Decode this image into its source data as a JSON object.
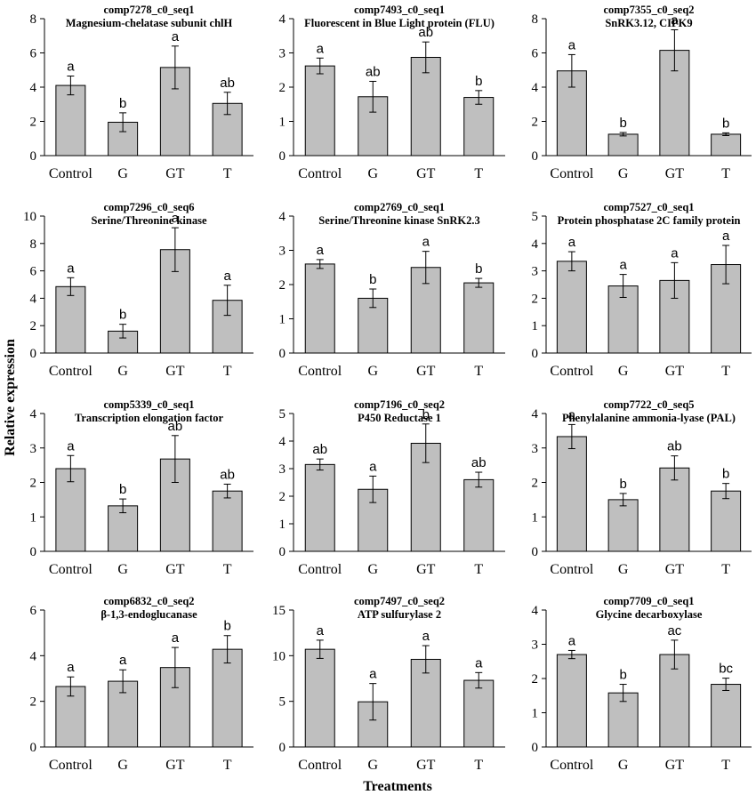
{
  "figure": {
    "ylabel": "Relative expression",
    "xlabel": "Treatments"
  },
  "chart_data": [
    {
      "type": "bar",
      "title": "comp7278_c0_seq1",
      "subtitle": "Magnesium-chelatase subunit chlH",
      "categories": [
        "Control",
        "G",
        "GT",
        "T"
      ],
      "values": [
        4.1,
        1.95,
        5.15,
        3.05
      ],
      "errors": [
        0.55,
        0.55,
        1.25,
        0.65
      ],
      "labels": [
        "a",
        "b",
        "a",
        "ab"
      ],
      "ylim": [
        0,
        8
      ],
      "yticks": [
        0,
        2,
        4,
        6,
        8
      ],
      "ytick_labels": [
        "0",
        "2",
        "4",
        "6",
        "8"
      ],
      "bar_color": "#bfbfbf"
    },
    {
      "type": "bar",
      "title": "comp7493_c0_seq1",
      "subtitle": "Fluorescent in Blue Light protein (FLU)",
      "categories": [
        "Control",
        "G",
        "GT",
        "T"
      ],
      "values": [
        2.62,
        1.72,
        2.87,
        1.7
      ],
      "errors": [
        0.23,
        0.45,
        0.45,
        0.2
      ],
      "labels": [
        "a",
        "ab",
        "ab",
        "b"
      ],
      "ylim": [
        0,
        4
      ],
      "yticks": [
        0,
        1,
        2,
        3,
        4
      ],
      "ytick_labels": [
        "0",
        "1",
        "2",
        "3",
        "4"
      ],
      "bar_color": "#bfbfbf"
    },
    {
      "type": "bar",
      "title": "comp7355_c0_seq2",
      "subtitle": "SnRK3.12, CIPK9",
      "categories": [
        "Control",
        "G",
        "GT",
        "T"
      ],
      "values": [
        4.95,
        1.25,
        6.15,
        1.25
      ],
      "errors": [
        0.95,
        0.1,
        1.2,
        0.08
      ],
      "labels": [
        "a",
        "b",
        "a",
        "b"
      ],
      "ylim": [
        0,
        8
      ],
      "yticks": [
        0,
        2,
        4,
        6,
        8
      ],
      "ytick_labels": [
        "0",
        "2",
        "4",
        "6",
        "8"
      ],
      "bar_color": "#bfbfbf"
    },
    {
      "type": "bar",
      "title": "comp7296_c0_seq6",
      "subtitle": "Serine/Threonine kinase",
      "categories": [
        "Control",
        "G",
        "GT",
        "T"
      ],
      "values": [
        4.85,
        1.6,
        7.55,
        3.85
      ],
      "errors": [
        0.65,
        0.5,
        1.6,
        1.1
      ],
      "labels": [
        "a",
        "b",
        "a",
        "a"
      ],
      "ylim": [
        0,
        10
      ],
      "yticks": [
        0,
        2,
        4,
        6,
        8,
        10
      ],
      "ytick_labels": [
        "0",
        "2",
        "4",
        "6",
        "8",
        "10"
      ],
      "bar_color": "#bfbfbf"
    },
    {
      "type": "bar",
      "title": "comp2769_c0_seq1",
      "subtitle": "Serine/Threonine kinase SnRK2.3",
      "categories": [
        "Control",
        "G",
        "GT",
        "T"
      ],
      "values": [
        2.6,
        1.6,
        2.5,
        2.05
      ],
      "errors": [
        0.13,
        0.27,
        0.47,
        0.13
      ],
      "labels": [
        "a",
        "b",
        "a",
        "b"
      ],
      "ylim": [
        0,
        4
      ],
      "yticks": [
        0,
        1,
        2,
        3,
        4
      ],
      "ytick_labels": [
        "0",
        "1",
        "2",
        "3",
        "4"
      ],
      "bar_color": "#bfbfbf"
    },
    {
      "type": "bar",
      "title": "comp7527_c0_seq1",
      "subtitle": "Protein phosphatase 2C family protein",
      "categories": [
        "Control",
        "G",
        "GT",
        "T"
      ],
      "values": [
        3.35,
        2.45,
        2.65,
        3.23
      ],
      "errors": [
        0.35,
        0.42,
        0.65,
        0.7
      ],
      "labels": [
        "a",
        "a",
        "a",
        "a"
      ],
      "ylim": [
        0,
        5
      ],
      "yticks": [
        0,
        1,
        2,
        3,
        4,
        5
      ],
      "ytick_labels": [
        "0",
        "1",
        "2",
        "3",
        "4",
        "5"
      ],
      "bar_color": "#bfbfbf"
    },
    {
      "type": "bar",
      "title": "comp5339_c0_seq1",
      "subtitle": "Transcription elongation factor",
      "categories": [
        "Control",
        "G",
        "GT",
        "T"
      ],
      "values": [
        2.4,
        1.32,
        2.68,
        1.75
      ],
      "errors": [
        0.38,
        0.2,
        0.68,
        0.2
      ],
      "labels": [
        "a",
        "b",
        "ab",
        "ab"
      ],
      "ylim": [
        0,
        4
      ],
      "yticks": [
        0,
        1,
        2,
        3,
        4
      ],
      "ytick_labels": [
        "0",
        "1",
        "2",
        "3",
        "4"
      ],
      "bar_color": "#bfbfbf"
    },
    {
      "type": "bar",
      "title": "comp7196_c0_seq2",
      "subtitle": "P450 Reductase 1",
      "categories": [
        "Control",
        "G",
        "GT",
        "T"
      ],
      "values": [
        3.15,
        2.25,
        3.92,
        2.6
      ],
      "errors": [
        0.2,
        0.48,
        0.7,
        0.27
      ],
      "labels": [
        "ab",
        "a",
        "b",
        "ab"
      ],
      "ylim": [
        0,
        5
      ],
      "yticks": [
        0,
        1,
        2,
        3,
        4,
        5
      ],
      "ytick_labels": [
        "0",
        "1",
        "2",
        "3",
        "4",
        "5"
      ],
      "bar_color": "#bfbfbf"
    },
    {
      "type": "bar",
      "title": "comp7722_c0_seq5",
      "subtitle": "Phenylalanine ammonia-lyase (PAL)",
      "categories": [
        "Control",
        "G",
        "GT",
        "T"
      ],
      "values": [
        3.33,
        1.5,
        2.42,
        1.75
      ],
      "errors": [
        0.35,
        0.18,
        0.35,
        0.22
      ],
      "labels": [
        "a",
        "b",
        "ab",
        "b"
      ],
      "ylim": [
        0,
        4
      ],
      "yticks": [
        0,
        1,
        2,
        3,
        4
      ],
      "ytick_labels": [
        "0",
        "1",
        "2",
        "3",
        "4"
      ],
      "bar_color": "#bfbfbf"
    },
    {
      "type": "bar",
      "title": "comp6832_c0_seq2",
      "subtitle": "β-1,3-endoglucanase",
      "categories": [
        "Control",
        "G",
        "GT",
        "T"
      ],
      "values": [
        2.65,
        2.88,
        3.48,
        4.28
      ],
      "errors": [
        0.42,
        0.5,
        0.88,
        0.6
      ],
      "labels": [
        "a",
        "a",
        "a",
        "b"
      ],
      "ylim": [
        0,
        6
      ],
      "yticks": [
        0,
        2,
        4,
        6
      ],
      "ytick_labels": [
        "0",
        "2",
        "4",
        "6"
      ],
      "bar_color": "#bfbfbf"
    },
    {
      "type": "bar",
      "title": "comp7497_c0_seq2",
      "subtitle": "ATP sulfurylase 2",
      "categories": [
        "Control",
        "G",
        "GT",
        "T"
      ],
      "values": [
        10.7,
        4.95,
        9.6,
        7.3
      ],
      "errors": [
        1.0,
        2.0,
        1.5,
        0.85
      ],
      "labels": [
        "a",
        "a",
        "a",
        "a"
      ],
      "ylim": [
        0,
        15
      ],
      "yticks": [
        0,
        5,
        10,
        15
      ],
      "ytick_labels": [
        "0",
        "5",
        "10",
        "15"
      ],
      "bar_color": "#bfbfbf"
    },
    {
      "type": "bar",
      "title": "comp7709_c0_seq1",
      "subtitle": "Glycine decarboxylase",
      "categories": [
        "Control",
        "G",
        "GT",
        "T"
      ],
      "values": [
        2.7,
        1.58,
        2.7,
        1.83
      ],
      "errors": [
        0.12,
        0.25,
        0.42,
        0.18
      ],
      "labels": [
        "a",
        "b",
        "ac",
        "bc"
      ],
      "ylim": [
        0,
        4
      ],
      "yticks": [
        0,
        1,
        2,
        3,
        4
      ],
      "ytick_labels": [
        "0",
        "1",
        "2",
        "3",
        "4"
      ],
      "bar_color": "#bfbfbf"
    }
  ]
}
